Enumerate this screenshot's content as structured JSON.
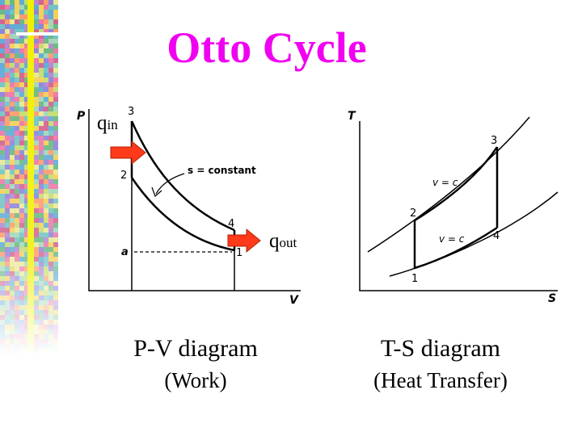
{
  "title": "Otto Cycle",
  "colors": {
    "title": "#f000f0",
    "arrow": "#ff3a1a",
    "arrow_edge": "#b02000",
    "sidebar_stripe": "#f0f000"
  },
  "pv": {
    "caption": "P-V diagram",
    "subcaption": "(Work)",
    "axis_p": "P",
    "axis_v": "V",
    "pt1": "1",
    "pt2": "2",
    "pt3": "3",
    "pt4": "4",
    "pta": "a",
    "isentrope_label": "s = constant",
    "qin_main": "q",
    "qin_sub": "in",
    "qout_main": "q",
    "qout_sub": "out"
  },
  "ts": {
    "caption": "T-S diagram",
    "subcaption": "(Heat Transfer)",
    "axis_t": "T",
    "axis_s": "S",
    "pt1": "1",
    "pt2": "2",
    "pt3": "3",
    "pt4": "4",
    "vc_upper": "v = c",
    "vc_lower": "v = c"
  }
}
